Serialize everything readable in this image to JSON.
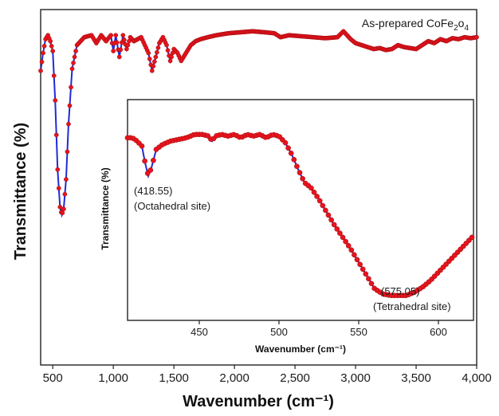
{
  "chart_data": [
    {
      "type": "line",
      "xlabel": "Wavenumber (cm⁻¹)",
      "ylabel": "Transmittance (%)",
      "xlim": [
        400,
        4000
      ],
      "x_ticks": [
        "500",
        "1,000",
        "1,500",
        "2,000",
        "2,500",
        "3,000",
        "3,500",
        "4,000"
      ],
      "x_tick_values": [
        500,
        1000,
        1500,
        2000,
        2500,
        3000,
        3500,
        4000
      ],
      "y_ticks": [],
      "annotation": {
        "base": "As-prepared CoFe",
        "sub1": "2",
        "mid": "o",
        "sub2": "4"
      },
      "series": [
        {
          "marker_color": "#e8141c",
          "line_color": "#1f2bd6",
          "x": [
            400,
            420,
            440,
            460,
            480,
            500,
            520,
            540,
            560,
            575,
            590,
            610,
            630,
            660,
            700,
            760,
            820,
            860,
            900,
            940,
            980,
            1000,
            1020,
            1050,
            1080,
            1110,
            1140,
            1170,
            1200,
            1230,
            1260,
            1290,
            1320,
            1350,
            1380,
            1410,
            1440,
            1470,
            1500,
            1530,
            1560,
            1600,
            1640,
            1680,
            1720,
            1780,
            1850,
            1950,
            2050,
            2150,
            2250,
            2330,
            2380,
            2450,
            2550,
            2650,
            2750,
            2850,
            2900,
            2930,
            2960,
            3000,
            3050,
            3100,
            3150,
            3200,
            3250,
            3300,
            3350,
            3400,
            3450,
            3500,
            3550,
            3600,
            3650,
            3700,
            3750,
            3800,
            3850,
            3900,
            3950,
            4000
          ],
          "y": [
            75,
            84,
            91,
            93,
            90,
            85,
            60,
            25,
            6,
            2,
            5,
            20,
            48,
            76,
            88,
            92,
            93,
            89,
            93,
            90,
            93,
            85,
            93,
            82,
            93,
            86,
            92,
            90,
            91,
            92,
            88,
            84,
            75,
            82,
            89,
            92,
            88,
            80,
            86,
            84,
            80,
            84,
            88,
            90,
            91,
            92,
            93,
            94,
            94.5,
            95,
            94.5,
            94,
            92,
            93,
            92.5,
            92,
            91.5,
            92,
            95,
            93,
            91,
            89,
            88,
            87,
            86,
            86.5,
            85.5,
            86,
            88,
            87,
            86.5,
            86,
            88,
            90,
            89,
            91,
            90,
            91.5,
            91,
            92,
            91.5,
            92
          ]
        }
      ],
      "inset": {
        "type": "line",
        "xlabel": "Wavenumber (cm⁻¹)",
        "ylabel": "Transmittance (%)",
        "xlim": [
          405,
          622
        ],
        "x_ticks": [
          "450",
          "500",
          "550",
          "600"
        ],
        "x_tick_values": [
          450,
          500,
          550,
          600
        ],
        "annotations": [
          {
            "x": 418.55,
            "line1": "(418.55)",
            "line2": "(Octahedral site)"
          },
          {
            "x": 575.05,
            "line1": "(575.05)",
            "line2": "(Tetrahedral site)"
          }
        ],
        "series": [
          {
            "marker_color": "#e8141c",
            "line_color": "#1f2bd6",
            "x": [
              405,
              408,
              411,
              414,
              416,
              418,
              420,
              423,
              427,
              432,
              437,
              442,
              447,
              452,
              456,
              458,
              460,
              464,
              468,
              472,
              476,
              480,
              484,
              488,
              492,
              496,
              500,
              504,
              508,
              512,
              516,
              520,
              525,
              530,
              535,
              540,
              545,
              550,
              555,
              560,
              565,
              570,
              575,
              580,
              585,
              590,
              595,
              600,
              605,
              610,
              615,
              620,
              622
            ],
            "y": [
              95,
              95,
              93,
              90,
              80,
              72,
              77,
              88,
              91,
              93,
              94,
              95,
              97,
              97,
              96,
              93,
              96,
              97,
              96,
              97,
              95,
              97,
              96,
              97,
              95,
              97,
              96,
              92,
              85,
              76,
              68,
              65,
              58,
              50,
              42,
              35,
              28,
              20,
              12,
              4,
              1,
              0,
              0,
              0,
              2,
              5,
              9,
              14,
              19,
              24,
              29,
              34,
              36
            ]
          }
        ]
      }
    }
  ]
}
